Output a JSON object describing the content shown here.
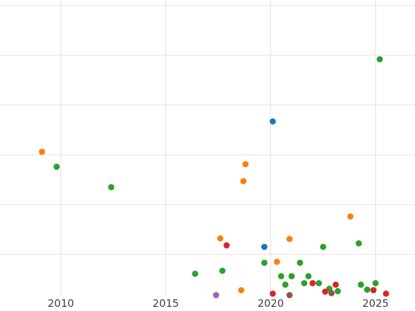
{
  "chart_data": {
    "type": "scatter",
    "title": "",
    "xlabel": "",
    "ylabel": "",
    "grid": true,
    "legend_position": "none",
    "xlim": [
      2007.1,
      2026.88
    ],
    "ylim": [
      -0.139,
      6.111
    ],
    "x_ticks": [
      2010,
      2015,
      2020,
      2025
    ],
    "x_tick_labels": [
      "2010",
      "2015",
      "2020",
      "2025"
    ],
    "y_gridlines": [
      1,
      2,
      3,
      4,
      5,
      6
    ],
    "gridline_color": "#e0e0e0",
    "tick_label_color": "#3f3f3f",
    "marker_radius": 4.5,
    "series": [
      {
        "name": "orange-series",
        "color": "#ff7f0e",
        "points": [
          [
            2009.1,
            3.06
          ],
          [
            2018.8,
            2.81
          ],
          [
            2018.7,
            2.47
          ],
          [
            2023.8,
            1.76
          ],
          [
            2017.6,
            1.32
          ],
          [
            2020.9,
            1.31
          ],
          [
            2020.3,
            0.85
          ],
          [
            2018.6,
            0.28
          ]
        ]
      },
      {
        "name": "green-series",
        "color": "#2ca02c",
        "points": [
          [
            2009.8,
            2.76
          ],
          [
            2012.4,
            2.35
          ],
          [
            2025.2,
            4.92
          ],
          [
            2022.5,
            1.15
          ],
          [
            2024.2,
            1.22
          ],
          [
            2019.7,
            0.83
          ],
          [
            2021.4,
            0.83
          ],
          [
            2016.4,
            0.61
          ],
          [
            2017.7,
            0.67
          ],
          [
            2020.5,
            0.56
          ],
          [
            2020.7,
            0.39
          ],
          [
            2021.0,
            0.56
          ],
          [
            2021.6,
            0.42
          ],
          [
            2021.8,
            0.56
          ],
          [
            2022.3,
            0.42
          ],
          [
            2022.8,
            0.31
          ],
          [
            2023.2,
            0.26
          ],
          [
            2024.3,
            0.39
          ],
          [
            2024.6,
            0.29
          ],
          [
            2025.0,
            0.42
          ]
        ]
      },
      {
        "name": "blue-series",
        "color": "#1f77b4",
        "points": [
          [
            2020.1,
            3.67
          ],
          [
            2019.7,
            1.15
          ]
        ]
      },
      {
        "name": "red-series",
        "color": "#d62728",
        "points": [
          [
            2017.9,
            1.18
          ],
          [
            2020.1,
            0.21
          ],
          [
            2022.0,
            0.42
          ],
          [
            2022.6,
            0.25
          ],
          [
            2023.1,
            0.39
          ],
          [
            2024.9,
            0.28
          ],
          [
            2025.5,
            0.21
          ]
        ]
      },
      {
        "name": "purple-series",
        "color": "#9467bd",
        "points": [
          [
            2017.4,
            0.18
          ]
        ]
      },
      {
        "name": "brown-series",
        "color": "#8c564b",
        "points": [
          [
            2020.9,
            0.18
          ],
          [
            2022.9,
            0.22
          ]
        ]
      }
    ]
  }
}
